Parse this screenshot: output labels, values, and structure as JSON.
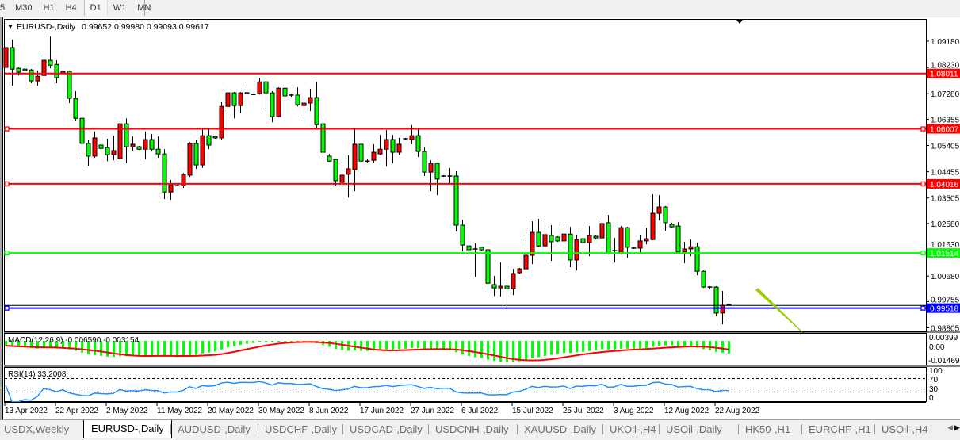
{
  "toolbar": {
    "timeframes": [
      {
        "label": "5",
        "selected": false
      },
      {
        "label": "M30",
        "selected": false
      },
      {
        "label": "H1",
        "selected": false
      },
      {
        "label": "H4",
        "selected": false
      },
      {
        "label": "D1",
        "selected": true
      },
      {
        "label": "W1",
        "selected": false
      },
      {
        "label": "MN",
        "selected": false
      }
    ]
  },
  "chart": {
    "symbol_header": "EURUSD-,Daily",
    "ohlc_header": "0.99652 0.99980 0.99093 0.99617",
    "price_ticks": [
      "1.09180",
      "1.08230",
      "1.07280",
      "1.06355",
      "1.05405",
      "1.04455",
      "1.03505",
      "1.02580",
      "1.01630",
      "1.00680",
      "0.99755",
      "0.98805"
    ],
    "horizontal_lines": [
      {
        "label": "1.08011",
        "price": 1.08011,
        "color": "#ff0000"
      },
      {
        "label": "1.06007",
        "price": 1.06007,
        "color": "#ff0000"
      },
      {
        "label": "1.04016",
        "price": 1.04016,
        "color": "#ff0000"
      },
      {
        "label": "1.01514",
        "price": 1.01514,
        "color": "#00ff00"
      },
      {
        "label": "0.99518",
        "price": 0.99518,
        "color": "#0000ff"
      }
    ],
    "current_price": 0.99617,
    "bull_color": "#ff0000",
    "bear_color": "#00ff00",
    "arrow_color": "#9acd00",
    "date_labels": [
      "13 Apr 2022",
      "22 Apr 2022",
      "2 May 2022",
      "11 May 2022",
      "20 May 2022",
      "30 May 2022",
      "8 Jun 2022",
      "17 Jun 2022",
      "27 Jun 2022",
      "6 Jul 2022",
      "15 Jul 2022",
      "25 Jul 2022",
      "3 Aug 2022",
      "12 Aug 2022",
      "22 Aug 2022"
    ]
  },
  "macd": {
    "label": "MACD(12,26,9) -0.006590 -0.003154",
    "scale_top": "0.00399",
    "scale_zero": "0.00",
    "scale_bottom": "-0.014693",
    "hist_color": "#00ff00",
    "signal_color": "#ff0000"
  },
  "rsi": {
    "label": "RSI(14) 33.2008",
    "levels": [
      "100",
      "70",
      "30",
      "0"
    ],
    "color": "#1e90ff"
  },
  "tabs": [
    {
      "label": "USDX,Weekly",
      "active": false
    },
    {
      "label": "EURUSD-,Daily",
      "active": true
    },
    {
      "label": "AUDUSD-,Daily",
      "active": false
    },
    {
      "label": "USDCHF-,Daily",
      "active": false
    },
    {
      "label": "USDCAD-,Daily",
      "active": false
    },
    {
      "label": "USDCNH-,Daily",
      "active": false
    },
    {
      "label": "XAUUSD-,Daily",
      "active": false
    },
    {
      "label": "UKOil-,H4",
      "active": false
    },
    {
      "label": "USOil-,Daily",
      "active": false
    },
    {
      "label": "HK50-,H1",
      "active": false
    },
    {
      "label": "EURCHF-,H1",
      "active": false
    },
    {
      "label": "USOil-,H4",
      "active": false
    }
  ],
  "chart_data": {
    "type": "candlestick",
    "title": "EURUSD-,Daily",
    "columns": [
      "open",
      "high",
      "low",
      "close"
    ],
    "candles": [
      [
        1.0823,
        1.0901,
        1.0814,
        1.0895
      ],
      [
        1.0895,
        1.0924,
        1.0757,
        1.0817
      ],
      [
        1.082,
        1.0823,
        1.0794,
        1.0806
      ],
      [
        1.0817,
        1.082,
        1.0809,
        1.0812
      ],
      [
        1.0814,
        1.0817,
        1.0766,
        1.0774
      ],
      [
        1.0774,
        1.0812,
        1.0757,
        1.0791
      ],
      [
        1.0794,
        1.0866,
        1.0783,
        1.0849
      ],
      [
        1.0849,
        1.0935,
        1.082,
        1.0831
      ],
      [
        1.0834,
        1.0849,
        1.0766,
        1.0786
      ],
      [
        1.0803,
        1.0809,
        1.08,
        1.0809
      ],
      [
        1.0809,
        1.0812,
        1.0694,
        1.0711
      ],
      [
        1.0711,
        1.0737,
        1.0631,
        1.0639
      ],
      [
        1.0639,
        1.0654,
        1.051,
        1.0548
      ],
      [
        1.0548,
        1.0562,
        1.0467,
        1.0502
      ],
      [
        1.0502,
        1.0591,
        1.0496,
        1.0568
      ],
      [
        1.0542,
        1.0545,
        1.0527,
        1.053
      ],
      [
        1.0533,
        1.0565,
        1.0484,
        1.0507
      ],
      [
        1.0507,
        1.0576,
        1.0487,
        1.0522
      ],
      [
        1.0493,
        1.0628,
        1.0487,
        1.0619
      ],
      [
        1.0619,
        1.0639,
        1.0476,
        1.0536
      ],
      [
        1.0536,
        1.0573,
        1.0522,
        1.0545
      ],
      [
        1.0536,
        1.0539,
        1.0524,
        1.0527
      ],
      [
        1.0527,
        1.0591,
        1.049,
        1.0562
      ],
      [
        1.0562,
        1.0582,
        1.0519,
        1.0527
      ],
      [
        1.0527,
        1.0573,
        1.0496,
        1.051
      ],
      [
        1.051,
        1.0527,
        1.0347,
        1.0372
      ],
      [
        1.0372,
        1.0416,
        1.0344,
        1.0398
      ],
      [
        1.0395,
        1.0398,
        1.0393,
        1.0395
      ],
      [
        1.0395,
        1.0441,
        1.0387,
        1.0436
      ],
      [
        1.0433,
        1.0553,
        1.0427,
        1.0548
      ],
      [
        1.0548,
        1.0562,
        1.0456,
        1.047
      ],
      [
        1.047,
        1.0605,
        1.0459,
        1.0576
      ],
      [
        1.0576,
        1.0599,
        1.0527,
        1.0542
      ],
      [
        1.0573,
        1.0576,
        1.0565,
        1.0568
      ],
      [
        1.0568,
        1.0697,
        1.0562,
        1.0682
      ],
      [
        1.0682,
        1.0746,
        1.0657,
        1.0731
      ],
      [
        1.0731,
        1.0734,
        1.0639,
        1.0685
      ],
      [
        1.0685,
        1.0734,
        1.0657,
        1.0731
      ],
      [
        1.0731,
        1.0763,
        1.0691,
        1.0728
      ],
      [
        1.0725,
        1.0728,
        1.0723,
        1.0725
      ],
      [
        1.0728,
        1.0786,
        1.0725,
        1.0771
      ],
      [
        1.0771,
        1.0774,
        1.0674,
        1.0731
      ],
      [
        1.0731,
        1.0737,
        1.0625,
        1.0645
      ],
      [
        1.0645,
        1.0751,
        1.0642,
        1.0748
      ],
      [
        1.0748,
        1.0763,
        1.0702,
        1.072
      ],
      [
        1.0723,
        1.0728,
        1.0717,
        1.0723
      ],
      [
        1.0723,
        1.0751,
        1.0682,
        1.0688
      ],
      [
        1.0685,
        1.0711,
        1.0648,
        1.0694
      ],
      [
        1.0694,
        1.0746,
        1.0665,
        1.0714
      ],
      [
        1.0714,
        1.0771,
        1.0605,
        1.0616
      ],
      [
        1.0619,
        1.0639,
        1.0499,
        1.0516
      ],
      [
        1.0502,
        1.051,
        1.0482,
        1.0484
      ],
      [
        1.049,
        1.0493,
        1.0395,
        1.0413
      ],
      [
        1.0407,
        1.0482,
        1.039,
        1.0433
      ],
      [
        1.0436,
        1.0505,
        1.0352,
        1.0456
      ],
      [
        1.0453,
        1.0599,
        1.0375,
        1.0545
      ],
      [
        1.0545,
        1.055,
        1.0438,
        1.0484
      ],
      [
        1.0484,
        1.0493,
        1.0479,
        1.0484
      ],
      [
        1.0487,
        1.0545,
        1.0479,
        1.0516
      ],
      [
        1.051,
        1.0579,
        1.0505,
        1.0527
      ],
      [
        1.0527,
        1.0596,
        1.0464,
        1.0562
      ],
      [
        1.0562,
        1.0579,
        1.0476,
        1.0516
      ],
      [
        1.0516,
        1.0568,
        1.0507,
        1.0545
      ],
      [
        1.0565,
        1.0568,
        1.0562,
        1.0565
      ],
      [
        1.0562,
        1.0614,
        1.0545,
        1.0576
      ],
      [
        1.0576,
        1.0605,
        1.0499,
        1.0519
      ],
      [
        1.0519,
        1.0533,
        1.043,
        1.0444
      ],
      [
        1.0444,
        1.0487,
        1.0375,
        1.0476
      ],
      [
        1.0476,
        1.0479,
        1.0361,
        1.0419
      ],
      [
        1.043,
        1.0433,
        1.0427,
        1.043
      ],
      [
        1.043,
        1.0459,
        1.0404,
        1.043
      ],
      [
        1.043,
        1.0447,
        1.0229,
        1.0252
      ],
      [
        1.0252,
        1.0272,
        1.0157,
        1.018
      ],
      [
        1.0177,
        1.0218,
        1.014,
        1.0163
      ],
      [
        1.0166,
        1.0186,
        1.0065,
        1.0166
      ],
      [
        1.0172,
        1.0175,
        1.016,
        1.0163
      ],
      [
        1.0163,
        1.0166,
        1.0028,
        1.0042
      ],
      [
        1.0037,
        1.0068,
        0.9996,
        1.0025
      ],
      [
        1.0025,
        1.0117,
        0.9994,
        1.0031
      ],
      [
        1.0031,
        1.0045,
        0.9954,
        1.0022
      ],
      [
        1.0022,
        1.0094,
        0.9999,
        1.0077
      ],
      [
        1.008,
        1.0097,
        1.0077,
        1.0094
      ],
      [
        1.0094,
        1.0198,
        1.0074,
        1.0143
      ],
      [
        1.0143,
        1.0266,
        1.0111,
        1.0226
      ],
      [
        1.0226,
        1.0275,
        1.0174,
        1.0177
      ],
      [
        1.0177,
        1.0275,
        1.0174,
        1.0218
      ],
      [
        1.0215,
        1.0252,
        1.0123,
        1.0192
      ],
      [
        1.0209,
        1.0212,
        1.0192,
        1.0195
      ],
      [
        1.0195,
        1.0255,
        1.0172,
        1.022
      ],
      [
        1.022,
        1.0246,
        1.01,
        1.0126
      ],
      [
        1.0126,
        1.0218,
        1.0088,
        1.02
      ],
      [
        1.0203,
        1.0232,
        1.0108,
        1.0189
      ],
      [
        1.0189,
        1.0249,
        1.014,
        1.0215
      ],
      [
        1.0212,
        1.0215,
        1.02,
        1.0206
      ],
      [
        1.0206,
        1.0272,
        1.0203,
        1.0258
      ],
      [
        1.0261,
        1.0289,
        1.0146,
        1.0149
      ],
      [
        1.016,
        1.0206,
        1.0117,
        1.016
      ],
      [
        1.0149,
        1.0249,
        1.0146,
        1.0243
      ],
      [
        1.0243,
        1.0246,
        1.0134,
        1.0172
      ],
      [
        1.0169,
        1.0172,
        1.0166,
        1.0169
      ],
      [
        1.0169,
        1.0218,
        1.0152,
        1.0195
      ],
      [
        1.0195,
        1.0243,
        1.0183,
        1.0203
      ],
      [
        1.02,
        1.0364,
        1.0198,
        1.0295
      ],
      [
        1.0295,
        1.0361,
        1.0269,
        1.0318
      ],
      [
        1.0318,
        1.0321,
        1.0232,
        1.0261
      ],
      [
        1.0255,
        1.0261,
        1.0243,
        1.0246
      ],
      [
        1.0249,
        1.0263,
        1.0152,
        1.0155
      ],
      [
        1.0155,
        1.0192,
        1.0114,
        1.0166
      ],
      [
        1.0166,
        1.02,
        1.014,
        1.0174
      ],
      [
        1.0174,
        1.0189,
        1.0071,
        1.0085
      ],
      [
        1.0085,
        1.0088,
        1.0025,
        1.0028
      ],
      [
        1.0028,
        1.0031,
        1.0022,
        1.0028
      ],
      [
        1.0028,
        1.0031,
        0.9922,
        0.9934
      ],
      [
        0.9934,
        1.0014,
        0.9893,
        0.9962
      ],
      [
        0.99652,
        0.9998,
        0.99093,
        0.99617
      ]
    ]
  }
}
